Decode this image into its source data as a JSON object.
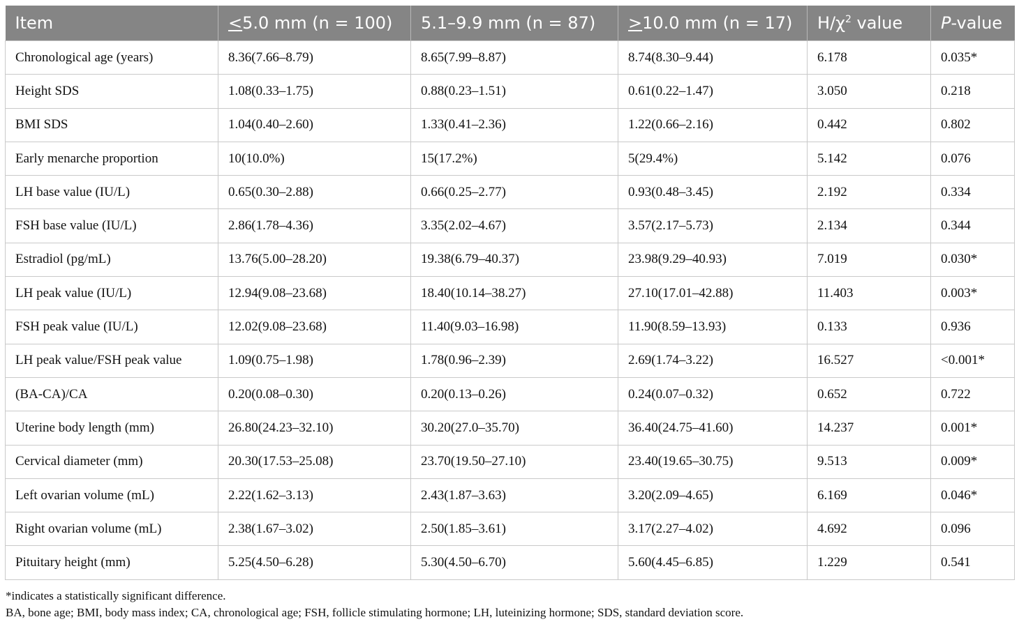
{
  "header": {
    "item": "Item",
    "group1_sym": "<",
    "group1_rest": "5.0 mm (n = 100)",
    "group2": "5.1–9.9 mm (n = 87)",
    "group3_sym": ">",
    "group3_rest": "10.0 mm (n = 17)",
    "stat_prefix": "H/χ",
    "stat_sup": "2",
    "stat_suffix": " value",
    "p_italic": "P",
    "p_rest": "-value"
  },
  "rows": [
    {
      "item": "Chronological age (years)",
      "g1": "8.36(7.66–8.79)",
      "g2": "8.65(7.99–8.87)",
      "g3": "8.74(8.30–9.44)",
      "stat": "6.178",
      "p": "0.035*"
    },
    {
      "item": "Height SDS",
      "g1": "1.08(0.33–1.75)",
      "g2": "0.88(0.23–1.51)",
      "g3": "0.61(0.22–1.47)",
      "stat": "3.050",
      "p": "0.218"
    },
    {
      "item": "BMI SDS",
      "g1": "1.04(0.40–2.60)",
      "g2": "1.33(0.41–2.36)",
      "g3": "1.22(0.66–2.16)",
      "stat": "0.442",
      "p": "0.802"
    },
    {
      "item": "Early menarche proportion",
      "g1": "10(10.0%)",
      "g2": "15(17.2%)",
      "g3": "5(29.4%)",
      "stat": "5.142",
      "p": "0.076"
    },
    {
      "item": "LH base value (IU/L)",
      "g1": "0.65(0.30–2.88)",
      "g2": "0.66(0.25–2.77)",
      "g3": "0.93(0.48–3.45)",
      "stat": "2.192",
      "p": "0.334"
    },
    {
      "item": "FSH base value (IU/L)",
      "g1": "2.86(1.78–4.36)",
      "g2": "3.35(2.02–4.67)",
      "g3": "3.57(2.17–5.73)",
      "stat": "2.134",
      "p": "0.344"
    },
    {
      "item": "Estradiol (pg/mL)",
      "g1": "13.76(5.00–28.20)",
      "g2": "19.38(6.79–40.37)",
      "g3": "23.98(9.29–40.93)",
      "stat": "7.019",
      "p": "0.030*"
    },
    {
      "item": "LH peak value (IU/L)",
      "g1": "12.94(9.08–23.68)",
      "g2": "18.40(10.14–38.27)",
      "g3": "27.10(17.01–42.88)",
      "stat": "11.403",
      "p": "0.003*"
    },
    {
      "item": "FSH peak value (IU/L)",
      "g1": "12.02(9.08–23.68)",
      "g2": "11.40(9.03–16.98)",
      "g3": "11.90(8.59–13.93)",
      "stat": "0.133",
      "p": "0.936"
    },
    {
      "item": "LH peak value/FSH peak value",
      "g1": "1.09(0.75–1.98)",
      "g2": "1.78(0.96–2.39)",
      "g3": "2.69(1.74–3.22)",
      "stat": "16.527",
      "p": "<0.001*"
    },
    {
      "item": "(BA-CA)/CA",
      "g1": "0.20(0.08–0.30)",
      "g2": "0.20(0.13–0.26)",
      "g3": "0.24(0.07–0.32)",
      "stat": "0.652",
      "p": "0.722"
    },
    {
      "item": "Uterine body length (mm)",
      "g1": "26.80(24.23–32.10)",
      "g2": "30.20(27.0–35.70)",
      "g3": "36.40(24.75–41.60)",
      "stat": "14.237",
      "p": "0.001*"
    },
    {
      "item": "Cervical diameter (mm)",
      "g1": "20.30(17.53–25.08)",
      "g2": "23.70(19.50–27.10)",
      "g3": "23.40(19.65–30.75)",
      "stat": "9.513",
      "p": "0.009*"
    },
    {
      "item": "Left ovarian volume (mL)",
      "g1": "2.22(1.62–3.13)",
      "g2": "2.43(1.87–3.63)",
      "g3": "3.20(2.09–4.65)",
      "stat": "6.169",
      "p": "0.046*"
    },
    {
      "item": "Right ovarian volume (mL)",
      "g1": "2.38(1.67–3.02)",
      "g2": "2.50(1.85–3.61)",
      "g3": "3.17(2.27–4.02)",
      "stat": "4.692",
      "p": "0.096"
    },
    {
      "item": "Pituitary height (mm)",
      "g1": "5.25(4.50–6.28)",
      "g2": "5.30(4.50–6.70)",
      "g3": "5.60(4.45–6.85)",
      "stat": "1.229",
      "p": "0.541"
    }
  ],
  "notes": {
    "line1": "*indicates a statistically significant difference.",
    "line2": "BA, bone age; BMI, body mass index; CA, chronological age; FSH, follicle stimulating hormone; LH, luteinizing hormone; SDS, standard deviation score."
  },
  "colors": {
    "header_bg": "#858585",
    "header_text": "#ffffff",
    "grid": "#c9c9c9"
  }
}
